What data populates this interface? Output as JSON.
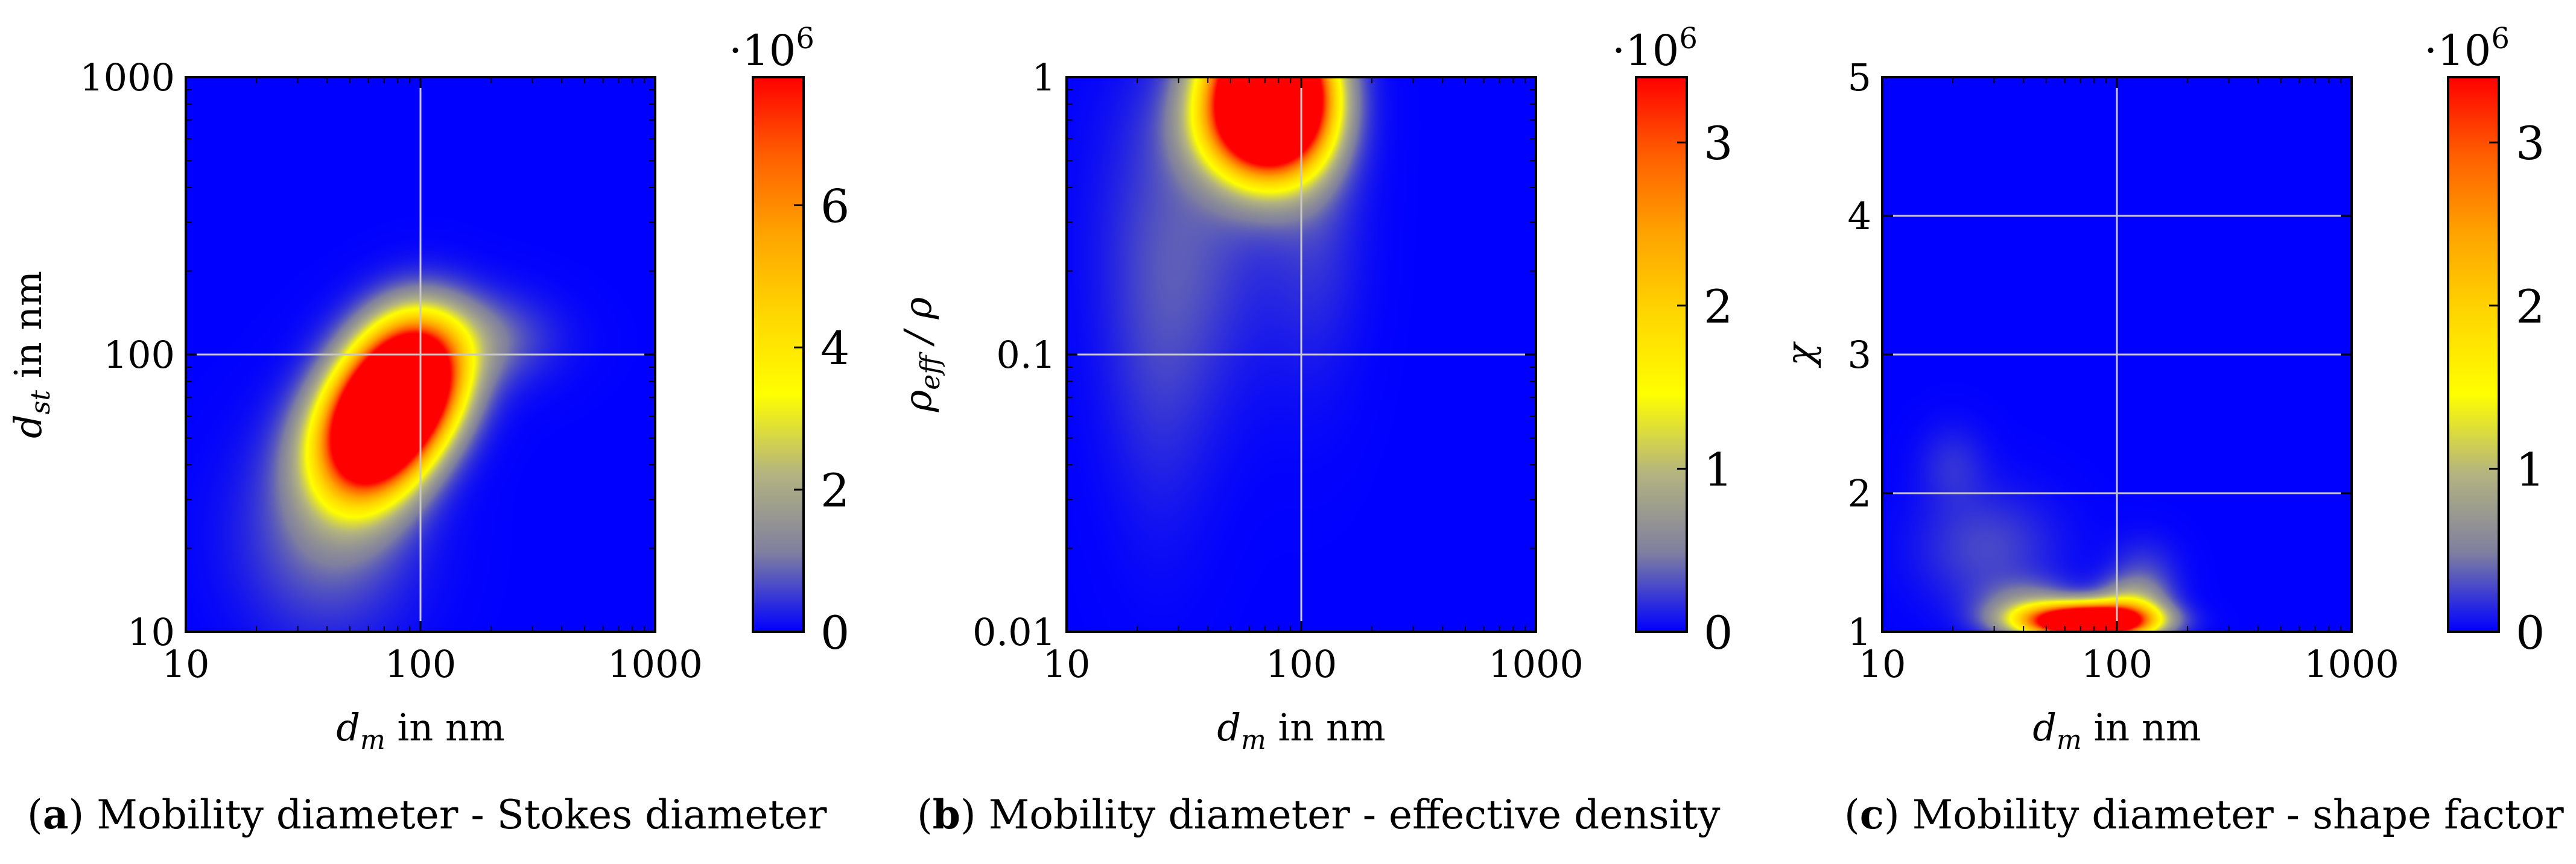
{
  "figure": {
    "panels": [
      {
        "letter": "a",
        "caption": "Mobility diameter - Stokes diameter"
      },
      {
        "letter": "b",
        "caption": "Mobility diameter - effective density"
      },
      {
        "letter": "c",
        "caption": "Mobility diameter - shape factor"
      }
    ]
  },
  "colors": {
    "background_blue": "#1414f0",
    "grid": "#c8c8c8",
    "colormap": [
      "#0000ff",
      "#7f7fa0",
      "#b4b480",
      "#ffff00",
      "#ffd700",
      "#ffa500",
      "#ff6000",
      "#ff0000"
    ]
  },
  "chart_data": [
    {
      "type": "heatmap",
      "id": "a",
      "xlabel": "d_m in nm",
      "xlabel_main": "d",
      "xlabel_sub": "m",
      "xlabel_rest": " in nm",
      "ylabel": "d_st in nm",
      "ylabel_main": "d",
      "ylabel_sub": "st",
      "ylabel_rest": " in nm",
      "xscale": "log",
      "yscale": "log",
      "xlim": [
        10,
        1000
      ],
      "ylim": [
        10,
        1000
      ],
      "xticks": [
        10,
        100,
        1000
      ],
      "xticklabels": [
        "10",
        "100",
        "1000"
      ],
      "yticks": [
        10,
        100,
        1000
      ],
      "yticklabels": [
        "10",
        "100",
        "1000"
      ],
      "grid_x": [
        100
      ],
      "grid_y": [
        100
      ],
      "colorbar": {
        "min": 0,
        "max": 7.8,
        "ticks": [
          0,
          2,
          4,
          6
        ],
        "ticklabels": [
          "0",
          "2",
          "4",
          "6"
        ],
        "multiplier": "·10",
        "exponent": "6"
      },
      "blobs": [
        {
          "x": 40,
          "y": 22,
          "sx": 0.12,
          "sy": 0.12,
          "amp": 0.12
        },
        {
          "x": 50,
          "y": 40,
          "sx": 0.08,
          "sy": 0.08,
          "amp": 0.45
        },
        {
          "x": 60,
          "y": 50,
          "sx": 0.07,
          "sy": 0.07,
          "amp": 0.7
        },
        {
          "x": 70,
          "y": 60,
          "sx": 0.07,
          "sy": 0.07,
          "amp": 0.88
        },
        {
          "x": 82,
          "y": 72,
          "sx": 0.07,
          "sy": 0.07,
          "amp": 0.85
        },
        {
          "x": 95,
          "y": 85,
          "sx": 0.07,
          "sy": 0.07,
          "amp": 0.6
        },
        {
          "x": 108,
          "y": 95,
          "sx": 0.07,
          "sy": 0.07,
          "amp": 0.35
        },
        {
          "x": 130,
          "y": 110,
          "sx": 0.12,
          "sy": 0.06,
          "amp": 0.1
        },
        {
          "x": 180,
          "y": 115,
          "sx": 0.1,
          "sy": 0.05,
          "amp": 0.07
        }
      ]
    },
    {
      "type": "heatmap",
      "id": "b",
      "xlabel": "d_m in nm",
      "xlabel_main": "d",
      "xlabel_sub": "m",
      "xlabel_rest": " in nm",
      "ylabel": "ρ_eff / ρ",
      "ylabel_main": "ρ",
      "ylabel_sub": "eff",
      "ylabel_rest": " / ρ",
      "xscale": "log",
      "yscale": "log",
      "xlim": [
        10,
        1000
      ],
      "ylim": [
        0.01,
        1
      ],
      "xticks": [
        10,
        100,
        1000
      ],
      "xticklabels": [
        "10",
        "100",
        "1000"
      ],
      "yticks": [
        0.01,
        0.1,
        1
      ],
      "yticklabels": [
        "0.01",
        "0.1",
        "1"
      ],
      "grid_x": [
        100
      ],
      "grid_y": [
        0.1
      ],
      "colorbar": {
        "min": 0,
        "max": 3.4,
        "ticks": [
          0,
          1,
          2,
          3
        ],
        "ticklabels": [
          "0",
          "1",
          "2",
          "3"
        ],
        "multiplier": "·10",
        "exponent": "6"
      },
      "blobs": [
        {
          "x": 55,
          "y": 0.9,
          "sx": 0.07,
          "sy": 0.09,
          "amp": 0.6
        },
        {
          "x": 70,
          "y": 0.85,
          "sx": 0.07,
          "sy": 0.09,
          "amp": 0.9
        },
        {
          "x": 85,
          "y": 0.85,
          "sx": 0.07,
          "sy": 0.09,
          "amp": 0.75
        },
        {
          "x": 100,
          "y": 0.85,
          "sx": 0.06,
          "sy": 0.08,
          "amp": 0.4
        },
        {
          "x": 60,
          "y": 0.65,
          "sx": 0.09,
          "sy": 0.06,
          "amp": 0.3
        },
        {
          "x": 35,
          "y": 0.3,
          "sx": 0.12,
          "sy": 0.2,
          "amp": 0.08
        },
        {
          "x": 25,
          "y": 0.1,
          "sx": 0.08,
          "sy": 0.22,
          "amp": 0.05
        },
        {
          "x": 115,
          "y": 0.35,
          "sx": 0.07,
          "sy": 0.2,
          "amp": 0.06
        }
      ]
    },
    {
      "type": "heatmap",
      "id": "c",
      "xlabel": "d_m in nm",
      "xlabel_main": "d",
      "xlabel_sub": "m",
      "xlabel_rest": " in nm",
      "ylabel": "χ",
      "ylabel_main": "χ",
      "ylabel_sub": "",
      "ylabel_rest": "",
      "xscale": "log",
      "yscale": "linear",
      "xlim": [
        10,
        1000
      ],
      "ylim": [
        1,
        5
      ],
      "xticks": [
        10,
        100,
        1000
      ],
      "xticklabels": [
        "10",
        "100",
        "1000"
      ],
      "yticks": [
        1,
        2,
        3,
        4,
        5
      ],
      "yticklabels": [
        "1",
        "2",
        "3",
        "4",
        "5"
      ],
      "grid_x": [
        100
      ],
      "grid_y": [
        2,
        3,
        4
      ],
      "colorbar": {
        "min": 0,
        "max": 3.4,
        "ticks": [
          0,
          1,
          2,
          3
        ],
        "ticklabels": [
          "0",
          "1",
          "2",
          "3"
        ],
        "multiplier": "·10",
        "exponent": "6"
      },
      "blobs": [
        {
          "x": 60,
          "y": 1.1,
          "sx": 0.08,
          "sy": 0.08,
          "amp": 0.65
        },
        {
          "x": 75,
          "y": 1.05,
          "sx": 0.08,
          "sy": 0.07,
          "amp": 0.95
        },
        {
          "x": 95,
          "y": 1.1,
          "sx": 0.07,
          "sy": 0.08,
          "amp": 0.65
        },
        {
          "x": 115,
          "y": 1.2,
          "sx": 0.05,
          "sy": 0.12,
          "amp": 0.25
        },
        {
          "x": 130,
          "y": 1.4,
          "sx": 0.05,
          "sy": 0.18,
          "amp": 0.07
        },
        {
          "x": 42,
          "y": 1.2,
          "sx": 0.07,
          "sy": 0.12,
          "amp": 0.15
        },
        {
          "x": 28,
          "y": 1.6,
          "sx": 0.1,
          "sy": 0.28,
          "amp": 0.08
        },
        {
          "x": 20,
          "y": 2.2,
          "sx": 0.05,
          "sy": 0.2,
          "amp": 0.05
        }
      ]
    }
  ]
}
